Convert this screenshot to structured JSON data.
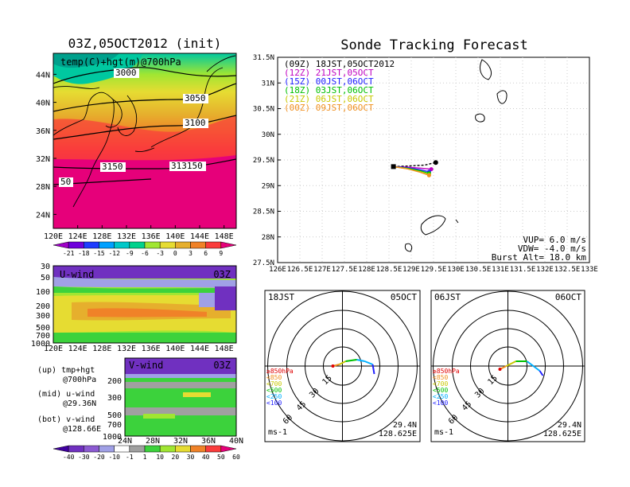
{
  "colors": {
    "temp_scale": [
      "#a000c8",
      "#6e00dc",
      "#1e3cff",
      "#00a0ff",
      "#00c8c8",
      "#00d28c",
      "#a0e632",
      "#e6dc32",
      "#e6af2d",
      "#f08228",
      "#fa3c3c",
      "#e6007a"
    ],
    "wind_scale": [
      "#4000a0",
      "#7030c0",
      "#8c5ad2",
      "#a0a0e6",
      "#ffffff",
      "#a0a0a0",
      "#3cd23c",
      "#a0e632",
      "#e6dc32",
      "#f08228",
      "#fa3c3c",
      "#e6007a"
    ],
    "land": "#000000",
    "track_colors": [
      "#000000",
      "#c000c0",
      "#2020ff",
      "#00c000",
      "#c8c800",
      "#f09020"
    ]
  },
  "left": {
    "title": "03Z,05OCT2012 (init)",
    "map_label": "temp(C)+hgt(m)@700hPa",
    "contour_labels": [
      "3000",
      "3050",
      "3100",
      "3150",
      "313150",
      "50"
    ],
    "lat_labels": [
      "44N",
      "40N",
      "36N",
      "32N",
      "28N",
      "24N"
    ],
    "lon_labels": [
      "120E",
      "124E",
      "128E",
      "132E",
      "136E",
      "140E",
      "144E",
      "148E"
    ],
    "temp_levels": [
      "-21",
      "-18",
      "-15",
      "-12",
      "-9",
      "-6",
      "-3",
      "0",
      "3",
      "6",
      "9"
    ],
    "u_title": "U-wind",
    "u_time": "03Z",
    "u_p_labels": [
      "30",
      "50",
      "100",
      "200",
      "300",
      "500",
      "700",
      "1000"
    ],
    "u_lon_labels": [
      "120E",
      "124E",
      "128E",
      "132E",
      "136E",
      "140E",
      "144E",
      "148E"
    ],
    "v_title": "V-wind",
    "v_time": "03Z",
    "v_p_labels": [
      "200",
      "300",
      "500",
      "700",
      "1000"
    ],
    "v_lat_labels": [
      "24N",
      "28N",
      "32N",
      "36N",
      "40N"
    ],
    "legend_lines": [
      "(up) tmp+hgt",
      "@700hPa",
      "(mid) u-wind",
      "@29.36N",
      "(bot) v-wind",
      "@128.66E"
    ],
    "wind_levels": [
      "-40",
      "-30",
      "-20",
      "-10",
      "-1",
      "1",
      "10",
      "20",
      "30",
      "40",
      "50",
      "60"
    ]
  },
  "right": {
    "title": "Sonde Tracking Forecast",
    "lat_labels": [
      "31.5N",
      "31N",
      "30.5N",
      "30N",
      "29.5N",
      "29N",
      "28.5N",
      "28N",
      "27.5N"
    ],
    "lon_labels": [
      "126E",
      "126.5E",
      "127E",
      "127.5E",
      "128E",
      "128.5E",
      "129E",
      "129.5E",
      "130E",
      "130.5E",
      "131E",
      "131.5E",
      "132E",
      "132.5E",
      "133E"
    ],
    "track_legend": [
      "(09Z) 18JST,05OCT2012",
      "(12Z) 21JST,05OCT",
      "(15Z) 00JST,06OCT",
      "(18Z) 03JST,06OCT",
      "(21Z) 06JST,06OCT",
      "(00Z) 09JST,06OCT"
    ],
    "vup": "VUP= 6.0 m/s",
    "vdw": "VDW= -4.0 m/s",
    "burst": "Burst Alt= 18.0 km",
    "polar": [
      {
        "time": "18JST",
        "date": "05OCT",
        "lat": "29.4N",
        "lon": "128.625E",
        "unit": "ms-1",
        "rings": [
          "15",
          "30",
          "45",
          "60"
        ],
        "levels": [
          "≥850hPa",
          "<850",
          "<700",
          "<500",
          "<250",
          "<100"
        ]
      },
      {
        "time": "06JST",
        "date": "06OCT",
        "lat": "29.4N",
        "lon": "128.625E",
        "unit": "ms-1",
        "rings": [
          "15",
          "30",
          "45",
          "60"
        ],
        "levels": [
          "≥850hPa",
          "<850",
          "<700",
          "<500",
          "<250",
          "<100"
        ]
      }
    ]
  },
  "chart_data": [
    {
      "type": "heatmap",
      "title": "03Z,05OCT2012 (init)",
      "subtitle": "temp(C)+hgt(m)@700hPa",
      "xlabel": "",
      "ylabel": "",
      "xlim": [
        120,
        150
      ],
      "ylim": [
        22,
        47
      ],
      "colorbar": [
        -21,
        -18,
        -15,
        -12,
        -9,
        -6,
        -3,
        0,
        3,
        6,
        9
      ]
    },
    {
      "type": "heatmap",
      "title": "U-wind",
      "subtitle": "03Z",
      "xlim": [
        120,
        150
      ],
      "y_pressure": [
        30,
        1000
      ],
      "colorbar": [
        -40,
        -30,
        -20,
        -10,
        -1,
        1,
        10,
        20,
        30,
        40,
        50,
        60
      ]
    },
    {
      "type": "heatmap",
      "title": "V-wind",
      "subtitle": "03Z",
      "xlim": [
        24,
        40
      ],
      "y_pressure": [
        150,
        1000
      ]
    },
    {
      "type": "line",
      "title": "Sonde Tracking Forecast",
      "xlim": [
        126,
        133
      ],
      "ylim": [
        27.5,
        31.5
      ],
      "series": [
        {
          "name": "(09Z) 18JST,05OCT2012",
          "x": [
            128.6,
            128.9,
            129.3,
            129.55
          ],
          "y": [
            29.37,
            29.38,
            29.4,
            29.45
          ]
        },
        {
          "name": "(12Z) 21JST,05OCT",
          "x": [
            128.6,
            128.9,
            129.2,
            129.45
          ],
          "y": [
            29.37,
            29.36,
            29.34,
            29.32
          ]
        },
        {
          "name": "(15Z) 00JST,06OCT",
          "x": [
            128.6,
            128.9,
            129.2,
            129.4
          ],
          "y": [
            29.37,
            29.35,
            29.31,
            29.27
          ]
        },
        {
          "name": "(18Z) 03JST,06OCT",
          "x": [
            128.6,
            128.9,
            129.2,
            129.4
          ],
          "y": [
            29.37,
            29.34,
            29.29,
            29.24
          ]
        },
        {
          "name": "(21Z) 06JST,06OCT",
          "x": [
            128.6,
            128.9,
            129.2,
            129.4
          ],
          "y": [
            29.37,
            29.33,
            29.27,
            29.21
          ]
        },
        {
          "name": "(00Z) 09JST,06OCT",
          "x": [
            128.6,
            128.9,
            129.2,
            129.4
          ],
          "y": [
            29.37,
            29.33,
            29.26,
            29.2
          ]
        }
      ]
    }
  ]
}
